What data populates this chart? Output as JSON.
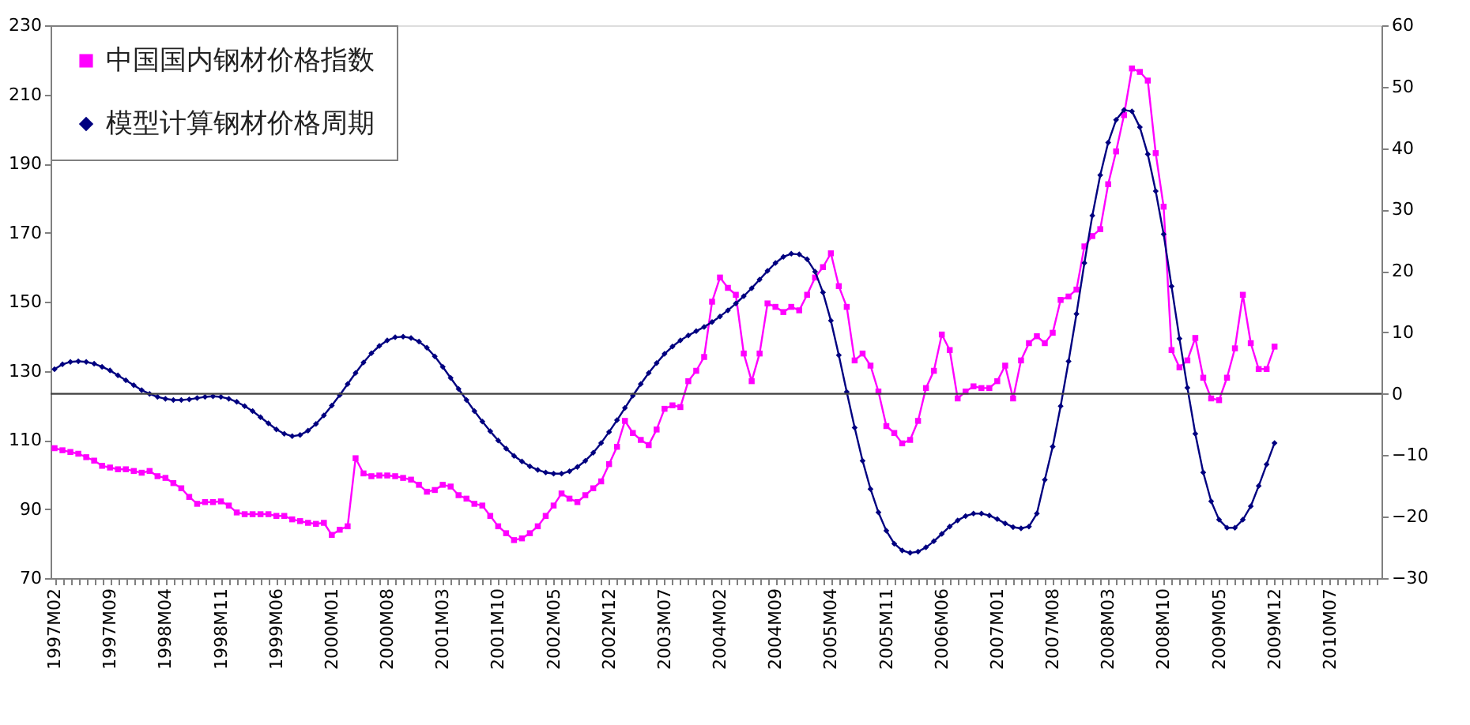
{
  "chart_data": {
    "type": "line",
    "categories": [
      "1997M02",
      null,
      null,
      null,
      null,
      null,
      null,
      "1997M09",
      null,
      null,
      null,
      null,
      null,
      null,
      "1998M04",
      null,
      null,
      null,
      null,
      null,
      null,
      "1998M11",
      null,
      null,
      null,
      null,
      null,
      null,
      "1999M06",
      null,
      null,
      null,
      null,
      null,
      null,
      "2000M01",
      null,
      null,
      null,
      null,
      null,
      null,
      "2000M08",
      null,
      null,
      null,
      null,
      null,
      null,
      "2001M03",
      null,
      null,
      null,
      null,
      null,
      null,
      "2001M10",
      null,
      null,
      null,
      null,
      null,
      null,
      "2002M05",
      null,
      null,
      null,
      null,
      null,
      null,
      "2002M12",
      null,
      null,
      null,
      null,
      null,
      null,
      "2003M07",
      null,
      null,
      null,
      null,
      null,
      null,
      "2004M02",
      null,
      null,
      null,
      null,
      null,
      null,
      "2004M09",
      null,
      null,
      null,
      null,
      null,
      null,
      "2005M04",
      null,
      null,
      null,
      null,
      null,
      null,
      "2005M11",
      null,
      null,
      null,
      null,
      null,
      null,
      "2006M06",
      null,
      null,
      null,
      null,
      null,
      null,
      "2007M01",
      null,
      null,
      null,
      null,
      null,
      null,
      "2007M08",
      null,
      null,
      null,
      null,
      null,
      null,
      "2008M03",
      null,
      null,
      null,
      null,
      null,
      null,
      "2008M10",
      null,
      null,
      null,
      null,
      null,
      null,
      "2009M05",
      null,
      null,
      null,
      null,
      null,
      null,
      "2009M12",
      null,
      null,
      null,
      null,
      null,
      null,
      "2010M07",
      null,
      null,
      null,
      null,
      null,
      null
    ],
    "series": [
      {
        "name": "中国国内钢材价格指数",
        "color": "#ff00ff",
        "marker": "square",
        "values": [
          107.6,
          107,
          106.5,
          106,
          105,
          104,
          102.5,
          102,
          101.5,
          101.5,
          101,
          100.5,
          101,
          99.5,
          99,
          97.5,
          96,
          93.5,
          91.5,
          92,
          92,
          92.2,
          91,
          89,
          88.5,
          88.5,
          88.5,
          88.5,
          88,
          88,
          87,
          86.5,
          86,
          85.7,
          86,
          82.5,
          84,
          85,
          104.7,
          100.3,
          99.5,
          99.7,
          99.7,
          99.5,
          99,
          98.5,
          97,
          95,
          95.5,
          97,
          96.5,
          94,
          93,
          91.5,
          91,
          88,
          85,
          83,
          81,
          81.5,
          83,
          85,
          88,
          91,
          94.5,
          93,
          92,
          94,
          96,
          98,
          103,
          108,
          115.5,
          112,
          110,
          108.5,
          113,
          119,
          120,
          119.5,
          127,
          130,
          134,
          150,
          157,
          154,
          152,
          135,
          127,
          135,
          149.5,
          148.5,
          147,
          148.5,
          147.5,
          152,
          157,
          160,
          164,
          154.5,
          148.5,
          133,
          135,
          131.5,
          124,
          114,
          112,
          109,
          110,
          115.5,
          125,
          130,
          140.5,
          136,
          122,
          124,
          125.5,
          125,
          125,
          127,
          131.5,
          122,
          133,
          138,
          140,
          138,
          141,
          150.5,
          151.5,
          153.5,
          166,
          169,
          171,
          184,
          193.5,
          204,
          217.5,
          216.5,
          214,
          193,
          177.5,
          136,
          131,
          133,
          139.5,
          128,
          122,
          121.5,
          128,
          136.5,
          152,
          138,
          130.5,
          130.5,
          137,
          null,
          null,
          null,
          null,
          null,
          null,
          null,
          null,
          null,
          null,
          null,
          null,
          null
        ]
      },
      {
        "name": "模型计算钢材价格周期",
        "color": "#000080",
        "marker": "diamond",
        "axis": "y2",
        "values": [
          4.0,
          4.8,
          5.2,
          5.3,
          5.2,
          4.9,
          4.4,
          3.8,
          3.0,
          2.2,
          1.4,
          0.6,
          0,
          -0.5,
          -0.8,
          -1.0,
          -1.0,
          -0.9,
          -0.7,
          -0.5,
          -0.4,
          -0.5,
          -0.8,
          -1.3,
          -2.0,
          -2.8,
          -3.8,
          -4.8,
          -5.8,
          -6.5,
          -6.9,
          -6.7,
          -6.0,
          -4.9,
          -3.5,
          -1.9,
          -0.2,
          1.6,
          3.4,
          5.1,
          6.6,
          7.8,
          8.7,
          9.2,
          9.3,
          9.1,
          8.5,
          7.5,
          6.1,
          4.4,
          2.6,
          0.8,
          -1.0,
          -2.8,
          -4.5,
          -6.1,
          -7.6,
          -8.9,
          -10.1,
          -11.0,
          -11.8,
          -12.4,
          -12.8,
          -13.0,
          -13.0,
          -12.6,
          -11.9,
          -10.9,
          -9.6,
          -8.0,
          -6.2,
          -4.3,
          -2.3,
          -0.3,
          1.6,
          3.4,
          5.0,
          6.5,
          7.7,
          8.7,
          9.5,
          10.2,
          10.9,
          11.7,
          12.6,
          13.6,
          14.7,
          15.9,
          17.2,
          18.6,
          20.0,
          21.3,
          22.3,
          22.8,
          22.7,
          21.9,
          19.9,
          16.5,
          11.9,
          6.3,
          0.3,
          -5.5,
          -10.9,
          -15.5,
          -19.3,
          -22.3,
          -24.4,
          -25.5,
          -25.9,
          -25.7,
          -25.0,
          -24.0,
          -22.8,
          -21.6,
          -20.6,
          -19.9,
          -19.5,
          -19.5,
          -19.8,
          -20.4,
          -21.1,
          -21.7,
          -21.9,
          -21.6,
          -19.5,
          -14.0,
          -8.6,
          -2.0,
          5.3,
          13.0,
          21.3,
          29.0,
          35.6,
          40.9,
          44.6,
          46.2,
          46.0,
          43.4,
          39.0,
          33.0,
          26.0,
          17.5,
          9.0,
          1.0,
          -6.5,
          -12.8,
          -17.5,
          -20.5,
          -21.8,
          -21.8,
          -20.5,
          -18.3,
          -15.0,
          -11.5,
          -8.0,
          null,
          null,
          null,
          null,
          null,
          null,
          null,
          null,
          null,
          null,
          null,
          null,
          null
        ]
      }
    ],
    "ylim": [
      70,
      230
    ],
    "yticks": [
      70,
      90,
      110,
      130,
      150,
      170,
      190,
      210,
      230
    ],
    "y2lim": [
      -30,
      60
    ],
    "y2ticks": [
      -30,
      -20,
      -10,
      0,
      10,
      20,
      30,
      40,
      50,
      60
    ],
    "ref_lines": [
      {
        "axis": "y2",
        "value": 0,
        "color": "#404040"
      }
    ],
    "grid": false,
    "legend": "top left"
  }
}
